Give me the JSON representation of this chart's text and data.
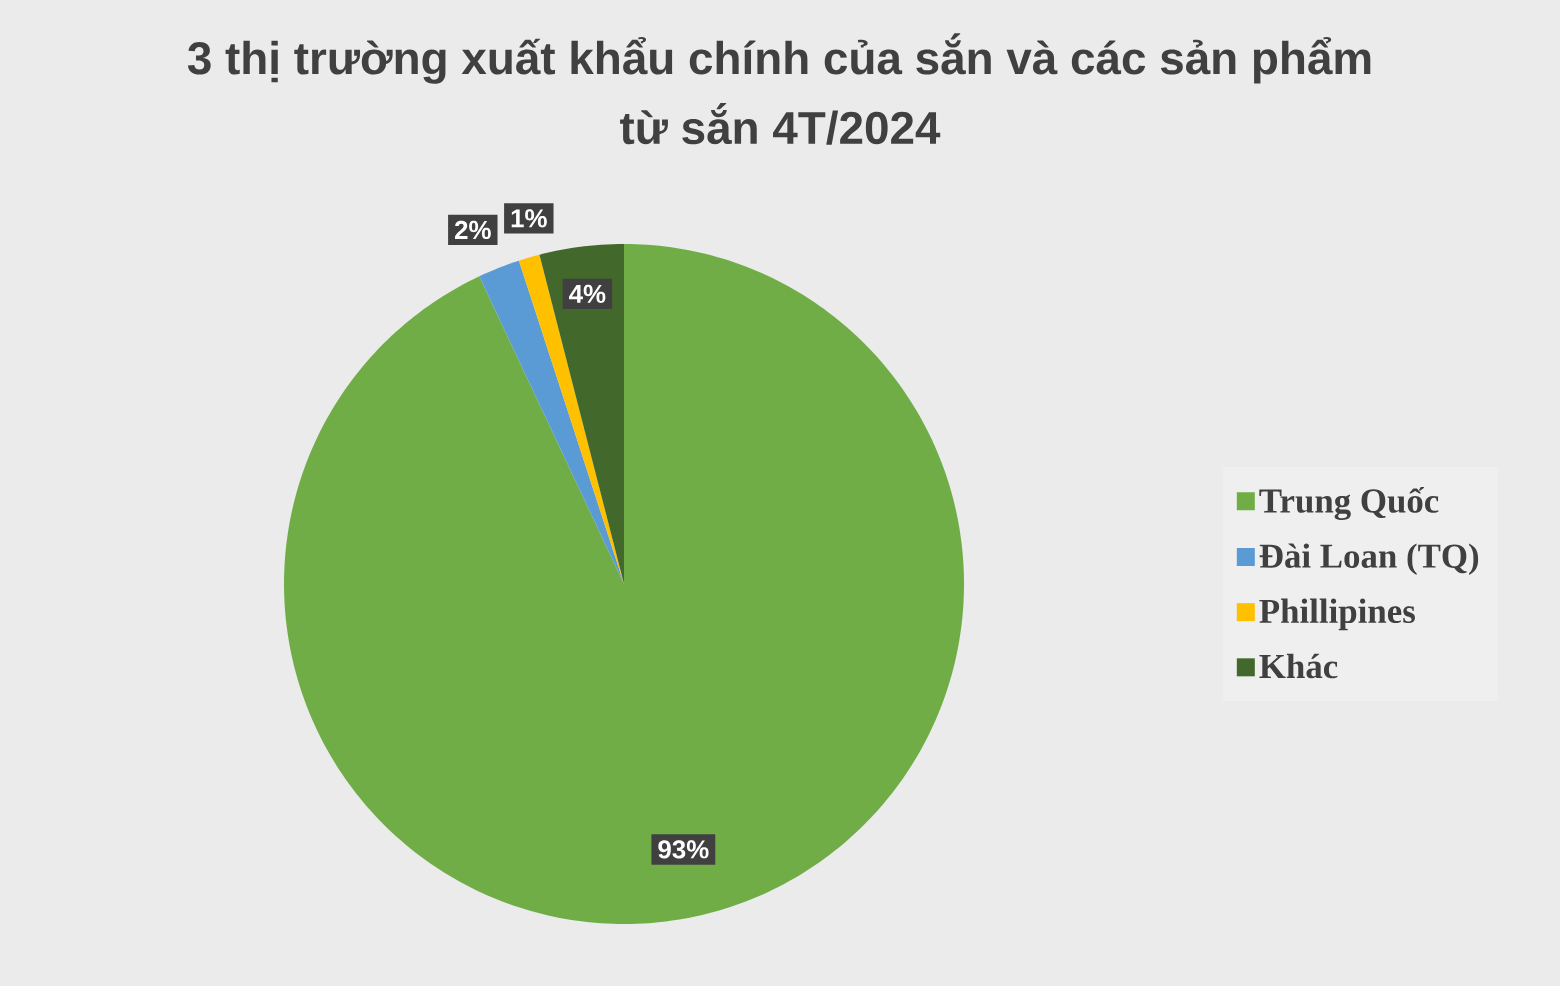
{
  "chart_data": {
    "type": "pie",
    "title": "3 thị trường xuất khẩu chính của sắn và các sản phẩm từ sắn 4T/2024",
    "categories": [
      "Trung Quốc",
      "Đài Loan (TQ)",
      "Phillipines",
      "Khác"
    ],
    "values": [
      93,
      2,
      1,
      4
    ],
    "colors": [
      "#70ad47",
      "#5b9bd5",
      "#ffc000",
      "#43682b"
    ],
    "value_labels": [
      "93%",
      "2%",
      "1%",
      "4%"
    ],
    "legend": "right"
  }
}
